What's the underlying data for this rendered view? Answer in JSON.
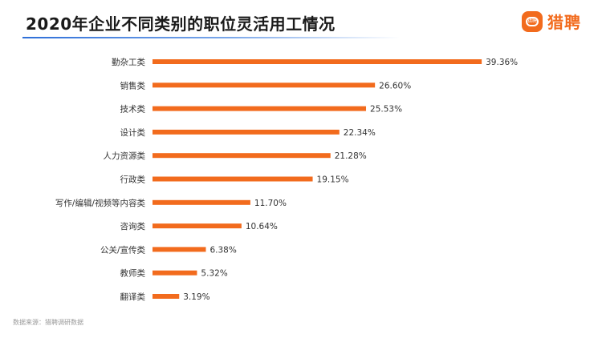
{
  "title": "2020年企业不同类别的职位灵活用工情况",
  "logo": {
    "text": "猎聘",
    "badge_text": "猎聘"
  },
  "footer": "数据来源：猎聘调研数据",
  "colors": {
    "bar": "#f26b1d",
    "accent": "#2e6fd8",
    "logo": "#f26b1d"
  },
  "chart_data": {
    "type": "bar",
    "orientation": "horizontal",
    "title": "2020年企业不同类别的职位灵活用工情况",
    "categories": [
      "勤杂工类",
      "销售类",
      "技术类",
      "设计类",
      "人力资源类",
      "行政类",
      "写作/编辑/视频等内容类",
      "咨询类",
      "公关/宣传类",
      "教师类",
      "翻译类"
    ],
    "values": [
      39.36,
      26.6,
      25.53,
      22.34,
      21.28,
      19.15,
      11.7,
      10.64,
      6.38,
      5.32,
      3.19
    ],
    "labels": [
      "39.36%",
      "26.60%",
      "25.53%",
      "22.34%",
      "21.28%",
      "19.15%",
      "11.70%",
      "10.64%",
      "6.38%",
      "5.32%",
      "3.19%"
    ],
    "unit": "%",
    "grid": false,
    "legend": "none"
  }
}
